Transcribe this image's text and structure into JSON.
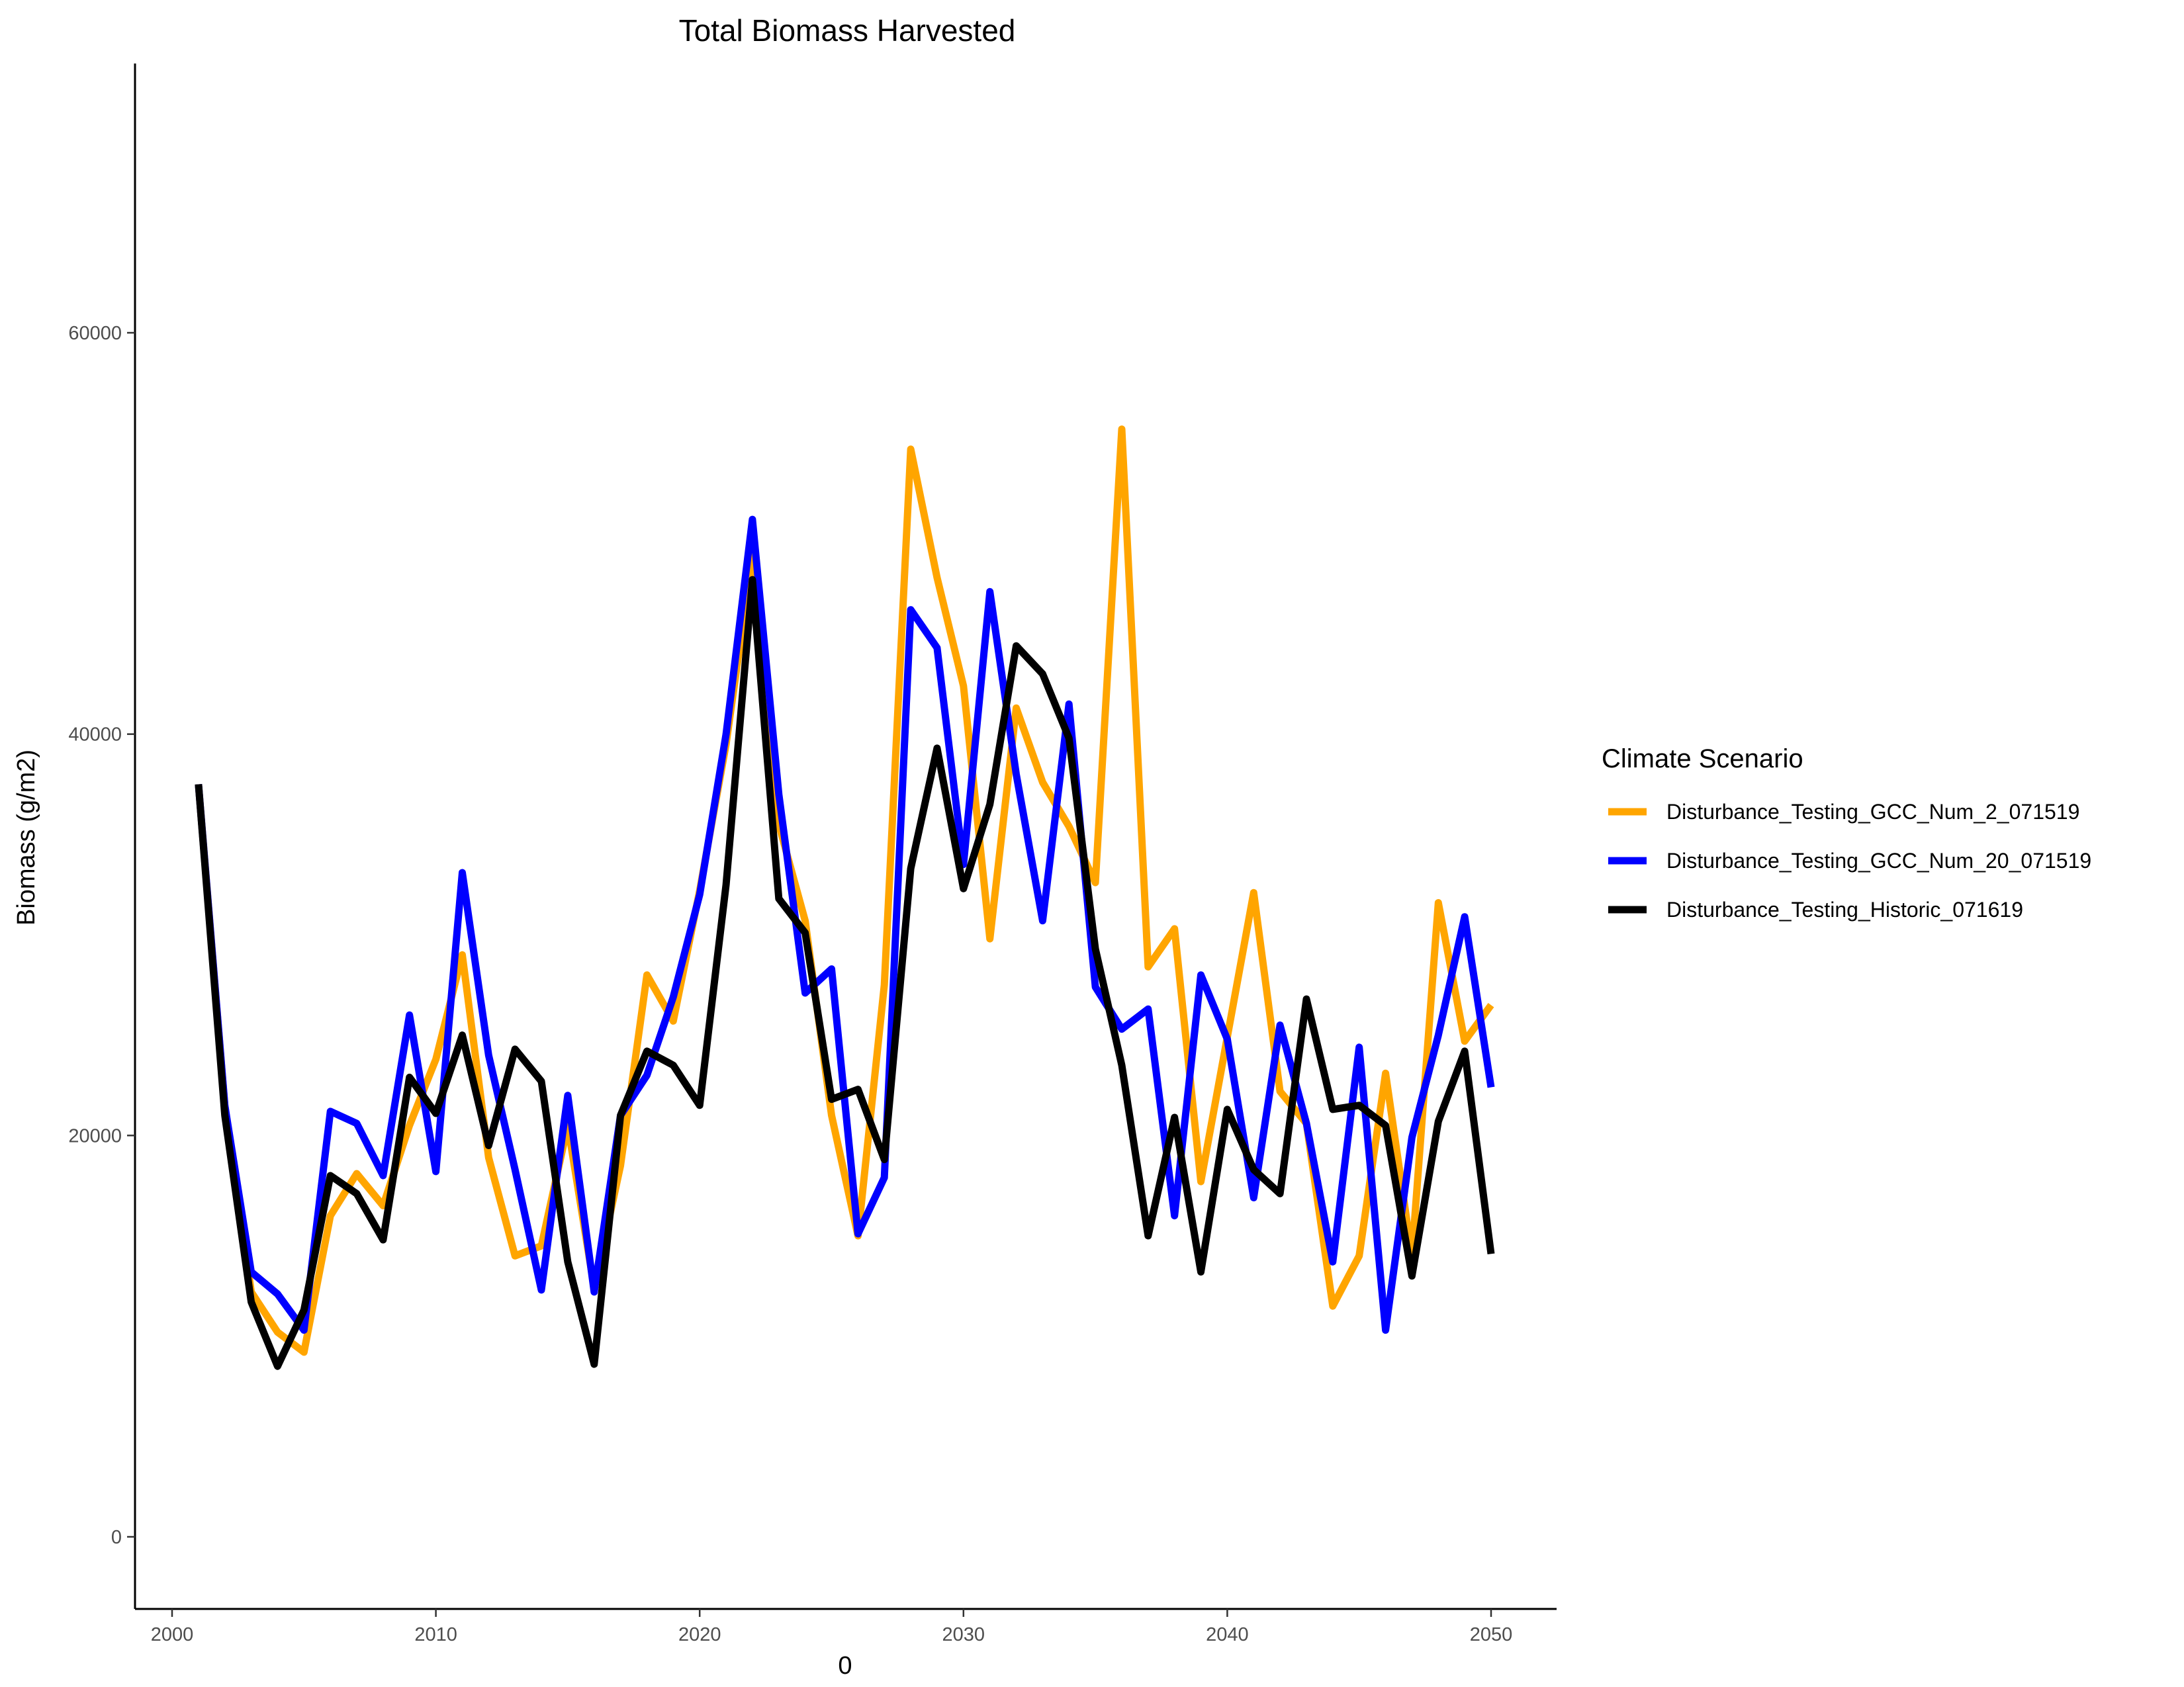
{
  "chart_data": {
    "type": "line",
    "title": "Total Biomass Harvested",
    "xlabel": "0",
    "ylabel": "Biomass (g/m2)",
    "xlim": [
      1999,
      2052.5
    ],
    "ylim": [
      -3500,
      73000
    ],
    "xticks": [
      2000,
      2010,
      2020,
      2030,
      2040,
      2050
    ],
    "yticks": [
      0,
      20000,
      40000,
      60000
    ],
    "grid": false,
    "legend": {
      "title": "Climate Scenario",
      "position": "right"
    },
    "x": [
      2001,
      2002,
      2003,
      2004,
      2005,
      2006,
      2007,
      2008,
      2009,
      2010,
      2011,
      2012,
      2013,
      2014,
      2015,
      2016,
      2017,
      2018,
      2019,
      2020,
      2021,
      2022,
      2023,
      2024,
      2025,
      2026,
      2027,
      2028,
      2029,
      2030,
      2031,
      2032,
      2033,
      2034,
      2035,
      2036,
      2037,
      2038,
      2039,
      2040,
      2041,
      2042,
      2043,
      2044,
      2045,
      2046,
      2047,
      2048,
      2049,
      2050
    ],
    "series": [
      {
        "name": "Disturbance_Testing_GCC_Num_2_071519",
        "color": "#FFA500",
        "values": [
          37500,
          21500,
          12200,
          10200,
          9200,
          16000,
          18100,
          16500,
          20500,
          23800,
          29000,
          18900,
          14000,
          14500,
          20500,
          12400,
          18500,
          28000,
          25700,
          32200,
          39500,
          48900,
          35500,
          30700,
          21000,
          15000,
          27500,
          54200,
          47800,
          42400,
          29800,
          41300,
          37600,
          35400,
          32600,
          55200,
          28400,
          30300,
          17700,
          24900,
          32100,
          22200,
          20600,
          11500,
          14000,
          23100,
          14000,
          31600,
          24700,
          26500
        ]
      },
      {
        "name": "Disturbance_Testing_GCC_Num_20_071519",
        "color": "#0000FF",
        "values": [
          37500,
          21500,
          13200,
          12100,
          10300,
          21200,
          20600,
          18000,
          26000,
          18200,
          33100,
          24000,
          18300,
          12300,
          22000,
          12200,
          21000,
          23000,
          26900,
          32000,
          40000,
          50700,
          37000,
          27100,
          28300,
          15100,
          17900,
          46200,
          44300,
          33500,
          47100,
          38000,
          30700,
          41500,
          27400,
          25300,
          26300,
          16000,
          28000,
          24800,
          16900,
          25500,
          20600,
          13700,
          24400,
          10300,
          19900,
          25000,
          30900,
          22400
        ]
      },
      {
        "name": "Disturbance_Testing_Historic_071619",
        "color": "#000000",
        "values": [
          37500,
          21000,
          11700,
          8500,
          11300,
          18000,
          17100,
          14800,
          22900,
          21100,
          25000,
          19500,
          24300,
          22700,
          13700,
          8600,
          21000,
          24200,
          23500,
          21500,
          32500,
          47700,
          31800,
          30100,
          21800,
          22300,
          18800,
          33300,
          39300,
          32300,
          36500,
          44400,
          43000,
          39800,
          29300,
          23500,
          15000,
          20900,
          13200,
          21300,
          18300,
          17100,
          26800,
          21300,
          21500,
          20500,
          13000,
          20700,
          24200,
          14100
        ]
      }
    ]
  }
}
